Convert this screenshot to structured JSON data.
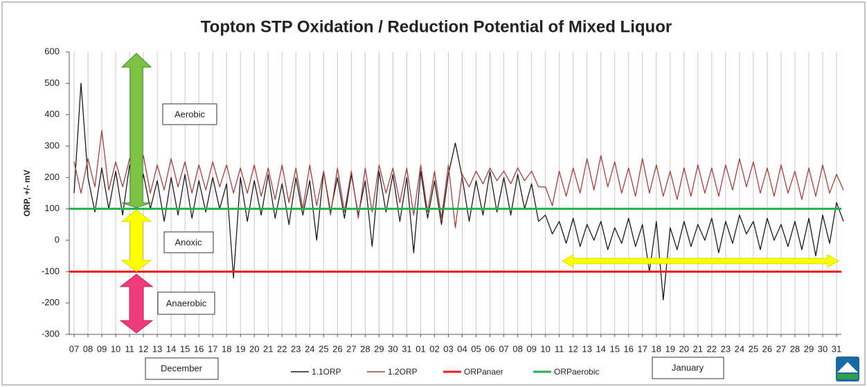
{
  "chart_data": {
    "type": "line",
    "title": "Topton STP Oxidation / Reduction Potential of Mixed Liquor",
    "y_label": "ORP, +/- mV",
    "annotations": [
      "Aerobic",
      "Anoxic",
      "Anaerobic"
    ],
    "month_labels": [
      "December",
      "January"
    ],
    "grid": "x",
    "xlim": [
      -0.35,
      55.35
    ],
    "ylim": [
      -300,
      600
    ],
    "yticks": [
      -300,
      -200,
      -100,
      0,
      100,
      200,
      300,
      400,
      500,
      600
    ],
    "xticks": [
      {
        "value": 0,
        "label": "07"
      },
      {
        "value": 1,
        "label": "08"
      },
      {
        "value": 2,
        "label": "09"
      },
      {
        "value": 3,
        "label": "10"
      },
      {
        "value": 4,
        "label": "11"
      },
      {
        "value": 5,
        "label": "12"
      },
      {
        "value": 6,
        "label": "13"
      },
      {
        "value": 7,
        "label": "14"
      },
      {
        "value": 8,
        "label": "15"
      },
      {
        "value": 9,
        "label": "16"
      },
      {
        "value": 10,
        "label": "17"
      },
      {
        "value": 11,
        "label": "18"
      },
      {
        "value": 12,
        "label": "19"
      },
      {
        "value": 13,
        "label": "20"
      },
      {
        "value": 14,
        "label": "21"
      },
      {
        "value": 15,
        "label": "22"
      },
      {
        "value": 16,
        "label": "23"
      },
      {
        "value": 17,
        "label": "24"
      },
      {
        "value": 18,
        "label": "25"
      },
      {
        "value": 19,
        "label": "26"
      },
      {
        "value": 20,
        "label": "27"
      },
      {
        "value": 21,
        "label": "28"
      },
      {
        "value": 22,
        "label": "29"
      },
      {
        "value": 23,
        "label": "30"
      },
      {
        "value": 24,
        "label": "31"
      },
      {
        "value": 25,
        "label": "01"
      },
      {
        "value": 26,
        "label": "02"
      },
      {
        "value": 27,
        "label": "03"
      },
      {
        "value": 28,
        "label": "04"
      },
      {
        "value": 29,
        "label": "05"
      },
      {
        "value": 30,
        "label": "06"
      },
      {
        "value": 31,
        "label": "07"
      },
      {
        "value": 32,
        "label": "08"
      },
      {
        "value": 33,
        "label": "09"
      },
      {
        "value": 34,
        "label": "10"
      },
      {
        "value": 35,
        "label": "11"
      },
      {
        "value": 36,
        "label": "12"
      },
      {
        "value": 37,
        "label": "13"
      },
      {
        "value": 38,
        "label": "14"
      },
      {
        "value": 39,
        "label": "15"
      },
      {
        "value": 40,
        "label": "16"
      },
      {
        "value": 41,
        "label": "17"
      },
      {
        "value": 42,
        "label": "18"
      },
      {
        "value": 43,
        "label": "19"
      },
      {
        "value": 44,
        "label": "20"
      },
      {
        "value": 45,
        "label": "21"
      },
      {
        "value": 46,
        "label": "22"
      },
      {
        "value": 47,
        "label": "23"
      },
      {
        "value": 48,
        "label": "24"
      },
      {
        "value": 49,
        "label": "25"
      },
      {
        "value": 50,
        "label": "26"
      },
      {
        "value": 51,
        "label": "27"
      },
      {
        "value": 52,
        "label": "28"
      },
      {
        "value": 53,
        "label": "29"
      },
      {
        "value": 54,
        "label": "30"
      },
      {
        "value": 55,
        "label": "31"
      }
    ],
    "x": [
      0,
      0.5,
      1,
      1.5,
      2,
      2.5,
      3,
      3.5,
      4,
      4.5,
      5,
      5.5,
      6,
      6.5,
      7,
      7.5,
      8,
      8.5,
      9,
      9.5,
      10,
      10.5,
      11,
      11.5,
      12,
      12.5,
      13,
      13.5,
      14,
      14.5,
      15,
      15.5,
      16,
      16.5,
      17,
      17.5,
      18,
      18.5,
      19,
      19.5,
      20,
      20.5,
      21,
      21.5,
      22,
      22.5,
      23,
      23.5,
      24,
      24.5,
      25,
      25.5,
      26,
      26.5,
      27,
      27.5,
      28,
      28.5,
      29,
      29.5,
      30,
      30.5,
      31,
      31.5,
      32,
      32.5,
      33,
      33.5,
      34,
      34.5,
      35,
      35.5,
      36,
      36.5,
      37,
      37.5,
      38,
      38.5,
      39,
      39.5,
      40,
      40.5,
      41,
      41.5,
      42,
      42.5,
      43,
      43.5,
      44,
      44.5,
      45,
      45.5,
      46,
      46.5,
      47,
      47.5,
      48,
      48.5,
      49,
      49.5,
      50,
      50.5,
      51,
      51.5,
      52,
      52.5,
      53,
      53.5,
      54,
      54.5,
      55,
      55.5
    ],
    "series": [
      {
        "name": "1.1ORP",
        "color": "#1a1a1a",
        "values": [
          150,
          500,
          200,
          90,
          230,
          100,
          220,
          80,
          240,
          90,
          210,
          100,
          190,
          60,
          200,
          80,
          210,
          70,
          190,
          90,
          200,
          100,
          180,
          -120,
          200,
          60,
          190,
          80,
          210,
          70,
          180,
          50,
          200,
          80,
          190,
          0,
          220,
          90,
          200,
          70,
          210,
          80,
          190,
          -20,
          220,
          90,
          210,
          60,
          200,
          -40,
          220,
          70,
          190,
          50,
          210,
          310,
          200,
          60,
          190,
          80,
          220,
          90,
          200,
          80,
          210,
          100,
          180,
          60,
          80,
          20,
          60,
          -10,
          70,
          -20,
          50,
          0,
          60,
          -30,
          40,
          -10,
          70,
          -20,
          50,
          -100,
          60,
          -190,
          40,
          -30,
          60,
          -20,
          50,
          0,
          70,
          -40,
          60,
          -10,
          80,
          20,
          60,
          -30,
          70,
          0,
          50,
          -20,
          60,
          -30,
          70,
          -50,
          80,
          -10,
          120,
          60
        ]
      },
      {
        "name": "1.2ORP",
        "color": "#a0413c",
        "values": [
          250,
          150,
          260,
          170,
          350,
          160,
          250,
          170,
          260,
          180,
          270,
          150,
          240,
          160,
          260,
          170,
          250,
          150,
          240,
          160,
          250,
          170,
          240,
          150,
          230,
          150,
          240,
          140,
          230,
          130,
          240,
          120,
          230,
          100,
          240,
          110,
          220,
          80,
          230,
          90,
          220,
          70,
          230,
          90,
          240,
          150,
          230,
          120,
          230,
          80,
          240,
          90,
          220,
          70,
          240,
          40,
          210,
          170,
          220,
          180,
          230,
          190,
          220,
          180,
          230,
          190,
          220,
          170,
          170,
          110,
          220,
          140,
          230,
          150,
          260,
          160,
          270,
          170,
          250,
          150,
          230,
          140,
          260,
          150,
          240,
          140,
          220,
          130,
          230,
          140,
          240,
          150,
          230,
          140,
          240,
          160,
          260,
          170,
          250,
          150,
          230,
          140,
          240,
          150,
          220,
          130,
          230,
          140,
          240,
          150,
          210,
          160
        ]
      },
      {
        "name": "ORPanaer",
        "color": "#ee1c1c",
        "value": -100
      },
      {
        "name": "ORPaerobic",
        "color": "#22b14c",
        "value": 100
      }
    ]
  }
}
